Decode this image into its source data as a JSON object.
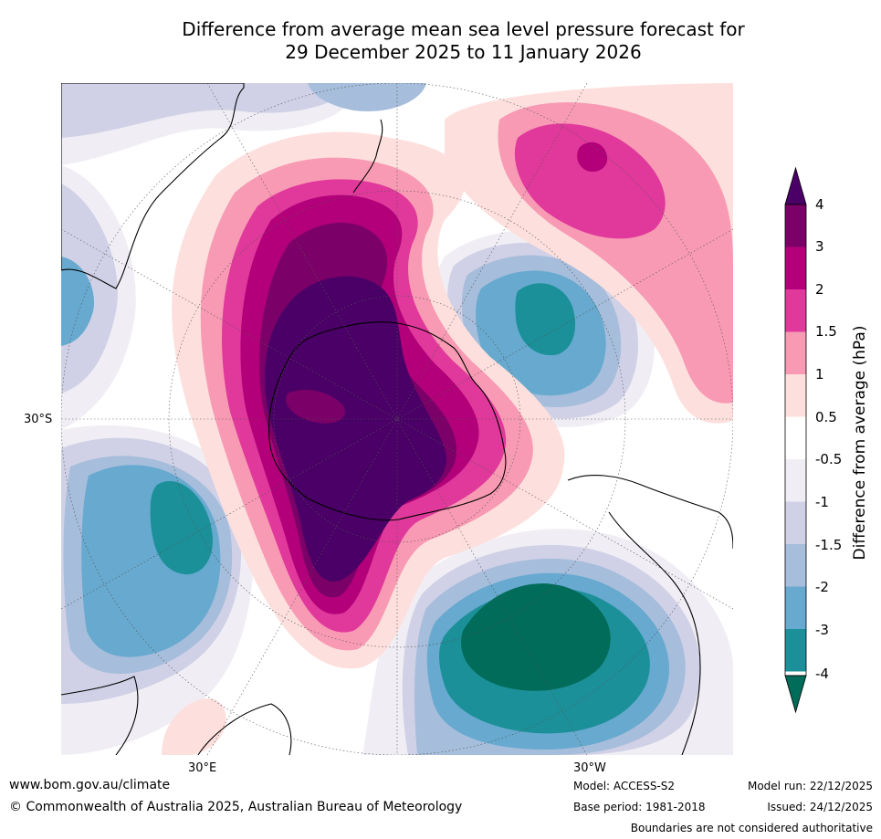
{
  "title": {
    "line1": "Difference from average mean sea level pressure forecast for",
    "line2": "29 December 2025 to 11 January 2026"
  },
  "map": {
    "projection": "south-polar-stereographic",
    "lat_label": "30°S",
    "lon_labels": [
      "30°E",
      "30°W"
    ],
    "features": [
      "strong-positive-anomaly-over-antarctica",
      "positive-anomaly-southwest-pacific",
      "negative-anomaly-south-atlantic",
      "negative-anomaly-south-indian-ocean",
      "negative-anomaly-southeast-pacific"
    ]
  },
  "colorbar": {
    "title": "Difference from average (hPa)",
    "ticks": [
      "4",
      "3",
      "2",
      "1.5",
      "1",
      "0.5",
      "-0.5",
      "-1",
      "-1.5",
      "-2",
      "-3",
      "-4"
    ],
    "colors_top_to_bottom": [
      "#4a0066",
      "#7b0068",
      "#b3007a",
      "#e0399b",
      "#f89ab4",
      "#fde0dd",
      "#ffffff",
      "#f0eef4",
      "#d0d1e6",
      "#a6bddb",
      "#67a9cf",
      "#1c9099",
      "#016c59"
    ]
  },
  "footer": {
    "website": "www.bom.gov.au/climate",
    "copyright": "© Commonwealth of Australia 2025, Australian Bureau of Meteorology",
    "model": "Model: ACCESS-S2",
    "base_period": "Base period: 1981-2018",
    "model_run": "Model run: 22/12/2025",
    "issued": "Issued: 24/12/2025",
    "boundaries": "Boundaries are not considered authoritative"
  }
}
